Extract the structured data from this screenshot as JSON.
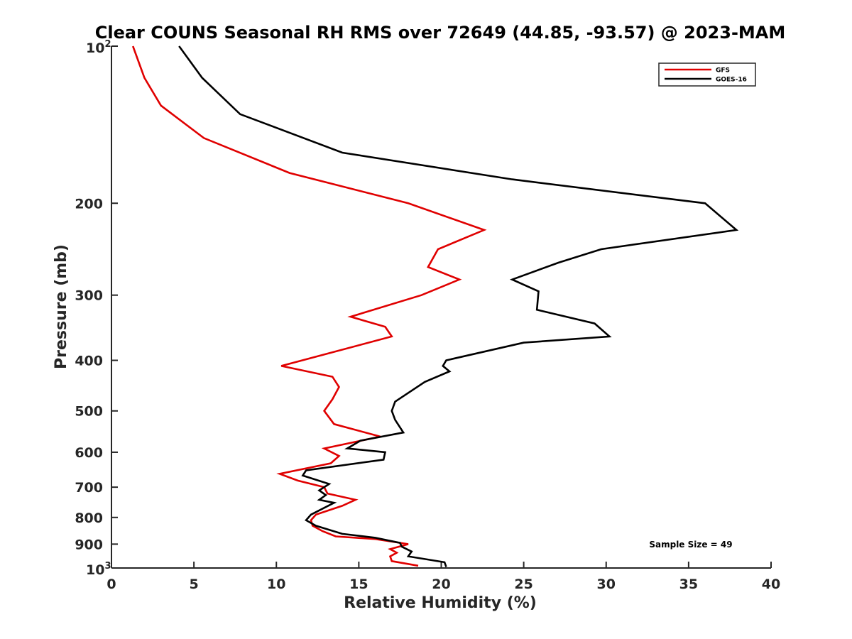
{
  "chart_data": {
    "type": "line",
    "title": "Clear COUNS Seasonal RH RMS over 72649 (44.85, -93.57) @ 2023-MAM",
    "xlabel": "Relative Humidity (%)",
    "ylabel": "Pressure (mb)",
    "xlim": [
      0,
      40
    ],
    "ylim": [
      100,
      1000
    ],
    "yscale": "log",
    "y_reversed": true,
    "xticks": [
      0,
      5,
      10,
      15,
      20,
      25,
      30,
      35,
      40
    ],
    "xtick_labels": [
      "0",
      "5",
      "10",
      "15",
      "20",
      "25",
      "30",
      "35",
      "40"
    ],
    "yticks": [
      {
        "value": 100,
        "base": "10",
        "exp": "2"
      },
      {
        "value": 200,
        "label": "200"
      },
      {
        "value": 300,
        "label": "300"
      },
      {
        "value": 400,
        "label": "400"
      },
      {
        "value": 500,
        "label": "500"
      },
      {
        "value": 600,
        "label": "600"
      },
      {
        "value": 700,
        "label": "700"
      },
      {
        "value": 800,
        "label": "800"
      },
      {
        "value": 900,
        "label": "900"
      },
      {
        "value": 1000,
        "base": "10",
        "exp": "3"
      }
    ],
    "legend_position": "top-right",
    "annotation": "Sample Size = 49",
    "series": [
      {
        "name": "GFS",
        "color": "#e00000",
        "points": [
          [
            1.3,
            100
          ],
          [
            2.0,
            115
          ],
          [
            3.0,
            130
          ],
          [
            5.6,
            150
          ],
          [
            10.8,
            175
          ],
          [
            18.0,
            200
          ],
          [
            22.6,
            225
          ],
          [
            19.8,
            245
          ],
          [
            19.2,
            265
          ],
          [
            21.1,
            280
          ],
          [
            18.8,
            300
          ],
          [
            14.5,
            330
          ],
          [
            16.6,
            345
          ],
          [
            17.0,
            360
          ],
          [
            10.3,
            410
          ],
          [
            13.4,
            430
          ],
          [
            13.8,
            450
          ],
          [
            13.4,
            475
          ],
          [
            12.9,
            500
          ],
          [
            13.5,
            530
          ],
          [
            16.3,
            560
          ],
          [
            12.9,
            590
          ],
          [
            13.8,
            610
          ],
          [
            13.3,
            630
          ],
          [
            10.2,
            660
          ],
          [
            11.3,
            680
          ],
          [
            12.9,
            700
          ],
          [
            13.1,
            720
          ],
          [
            14.8,
            740
          ],
          [
            14.0,
            760
          ],
          [
            12.4,
            790
          ],
          [
            12.1,
            810
          ],
          [
            12.2,
            830
          ],
          [
            12.8,
            850
          ],
          [
            13.6,
            870
          ],
          [
            16.0,
            880
          ],
          [
            18.0,
            900
          ],
          [
            16.9,
            920
          ],
          [
            17.3,
            935
          ],
          [
            16.9,
            950
          ],
          [
            17.0,
            970
          ],
          [
            18.6,
            990
          ]
        ]
      },
      {
        "name": "GOES-16",
        "color": "#000000",
        "points": [
          [
            4.1,
            100
          ],
          [
            5.5,
            115
          ],
          [
            7.8,
            135
          ],
          [
            14.0,
            160
          ],
          [
            24.3,
            180
          ],
          [
            36.0,
            200
          ],
          [
            37.9,
            225
          ],
          [
            29.7,
            245
          ],
          [
            27.1,
            260
          ],
          [
            24.3,
            280
          ],
          [
            25.9,
            295
          ],
          [
            25.8,
            320
          ],
          [
            29.3,
            340
          ],
          [
            30.2,
            360
          ],
          [
            25.0,
            370
          ],
          [
            20.3,
            400
          ],
          [
            20.1,
            410
          ],
          [
            20.5,
            420
          ],
          [
            19.0,
            440
          ],
          [
            17.2,
            480
          ],
          [
            17.0,
            500
          ],
          [
            17.2,
            520
          ],
          [
            17.7,
            550
          ],
          [
            15.1,
            570
          ],
          [
            14.3,
            590
          ],
          [
            16.6,
            600
          ],
          [
            16.5,
            620
          ],
          [
            11.8,
            650
          ],
          [
            11.6,
            665
          ],
          [
            13.2,
            690
          ],
          [
            12.6,
            710
          ],
          [
            13.0,
            725
          ],
          [
            12.6,
            740
          ],
          [
            13.5,
            750
          ],
          [
            12.1,
            790
          ],
          [
            11.8,
            810
          ],
          [
            12.4,
            830
          ],
          [
            14.0,
            860
          ],
          [
            16.0,
            875
          ],
          [
            17.5,
            895
          ],
          [
            17.6,
            910
          ],
          [
            18.2,
            930
          ],
          [
            18.0,
            950
          ],
          [
            20.2,
            975
          ],
          [
            20.3,
            995
          ]
        ]
      }
    ]
  }
}
